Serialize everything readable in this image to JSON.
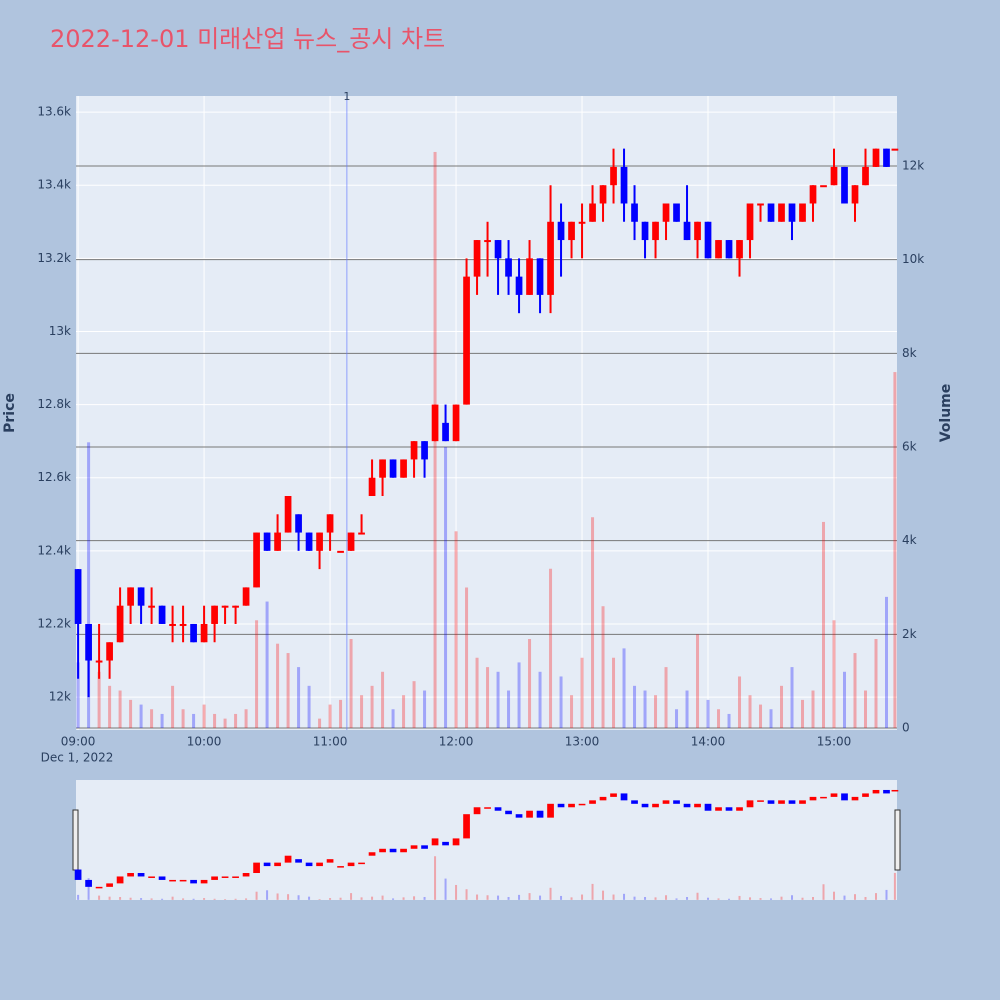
{
  "chart_data": {
    "type": "candlestick",
    "title": "2022-12-01 미래산업 뉴스_공시 차트",
    "y_label": "Price",
    "y2_label": "Volume",
    "x_date_label": "Dec 1, 2022",
    "increasing_color": "#ff0000",
    "decreasing_color": "#0000ff",
    "x": [
      "2022-12-01 09:00",
      "2022-12-01 09:05",
      "2022-12-01 09:10",
      "2022-12-01 09:15",
      "2022-12-01 09:20",
      "2022-12-01 09:25",
      "2022-12-01 09:30",
      "2022-12-01 09:35",
      "2022-12-01 09:40",
      "2022-12-01 09:45",
      "2022-12-01 09:50",
      "2022-12-01 09:55",
      "2022-12-01 10:00",
      "2022-12-01 10:05",
      "2022-12-01 10:10",
      "2022-12-01 10:15",
      "2022-12-01 10:20",
      "2022-12-01 10:25",
      "2022-12-01 10:30",
      "2022-12-01 10:35",
      "2022-12-01 10:40",
      "2022-12-01 10:45",
      "2022-12-01 10:50",
      "2022-12-01 10:55",
      "2022-12-01 11:00",
      "2022-12-01 11:05",
      "2022-12-01 11:10",
      "2022-12-01 11:15",
      "2022-12-01 11:20",
      "2022-12-01 11:25",
      "2022-12-01 11:30",
      "2022-12-01 11:35",
      "2022-12-01 11:40",
      "2022-12-01 11:45",
      "2022-12-01 11:50",
      "2022-12-01 11:55",
      "2022-12-01 12:00",
      "2022-12-01 12:05",
      "2022-12-01 12:10",
      "2022-12-01 12:15",
      "2022-12-01 12:20",
      "2022-12-01 12:25",
      "2022-12-01 12:30",
      "2022-12-01 12:35",
      "2022-12-01 12:40",
      "2022-12-01 12:45",
      "2022-12-01 12:50",
      "2022-12-01 12:55",
      "2022-12-01 13:00",
      "2022-12-01 13:05",
      "2022-12-01 13:10",
      "2022-12-01 13:15",
      "2022-12-01 13:20",
      "2022-12-01 13:25",
      "2022-12-01 13:30",
      "2022-12-01 13:35",
      "2022-12-01 13:40",
      "2022-12-01 13:45",
      "2022-12-01 13:50",
      "2022-12-01 13:55",
      "2022-12-01 14:00",
      "2022-12-01 14:05",
      "2022-12-01 14:10",
      "2022-12-01 14:15",
      "2022-12-01 14:20",
      "2022-12-01 14:25",
      "2022-12-01 14:30",
      "2022-12-01 14:35",
      "2022-12-01 14:40",
      "2022-12-01 14:45",
      "2022-12-01 14:50",
      "2022-12-01 14:55",
      "2022-12-01 15:00",
      "2022-12-01 15:05",
      "2022-12-01 15:10",
      "2022-12-01 15:15",
      "2022-12-01 15:20",
      "2022-12-01 15:25",
      "2022-12-01 15:29"
    ],
    "open": [
      12350,
      12200,
      12100,
      12100,
      12150,
      12250,
      12300,
      12250,
      12250,
      12200,
      12200,
      12200,
      12150,
      12200,
      12250,
      12250,
      12250,
      12300,
      12450,
      12400,
      12450,
      12500,
      12450,
      12400,
      12450,
      12400,
      12400,
      12450,
      12550,
      12600,
      12650,
      12600,
      12650,
      12700,
      12700,
      12750,
      12700,
      12800,
      13150,
      13250,
      13250,
      13200,
      13150,
      13100,
      13200,
      13100,
      13300,
      13250,
      13300,
      13300,
      13350,
      13400,
      13450,
      13350,
      13300,
      13250,
      13300,
      13350,
      13300,
      13250,
      13300,
      13200,
      13250,
      13200,
      13250,
      13350,
      13350,
      13300,
      13350,
      13300,
      13350,
      13400,
      13400,
      13450,
      13350,
      13400,
      13450,
      13500,
      13500
    ],
    "high": [
      12350,
      12200,
      12200,
      12150,
      12300,
      12300,
      12300,
      12300,
      12250,
      12250,
      12250,
      12200,
      12250,
      12250,
      12250,
      12250,
      12300,
      12450,
      12450,
      12500,
      12550,
      12500,
      12450,
      12450,
      12500,
      12400,
      12450,
      12500,
      12650,
      12650,
      12650,
      12650,
      12700,
      12700,
      12800,
      12800,
      12800,
      13200,
      13250,
      13300,
      13250,
      13250,
      13200,
      13250,
      13200,
      13400,
      13350,
      13300,
      13350,
      13400,
      13400,
      13500,
      13500,
      13400,
      13300,
      13300,
      13350,
      13350,
      13400,
      13300,
      13300,
      13250,
      13250,
      13250,
      13350,
      13350,
      13350,
      13350,
      13350,
      13350,
      13400,
      13400,
      13500,
      13450,
      13400,
      13500,
      13500,
      13500,
      13500
    ],
    "low": [
      12050,
      12000,
      12050,
      12050,
      12150,
      12200,
      12200,
      12200,
      12200,
      12150,
      12150,
      12150,
      12150,
      12150,
      12200,
      12200,
      12250,
      12300,
      12400,
      12400,
      12450,
      12400,
      12400,
      12350,
      12400,
      12400,
      12400,
      12450,
      12550,
      12550,
      12600,
      12600,
      12600,
      12600,
      12700,
      12700,
      12700,
      12800,
      13100,
      13150,
      13100,
      13100,
      13050,
      13100,
      13050,
      13050,
      13150,
      13200,
      13200,
      13300,
      13300,
      13350,
      13300,
      13250,
      13200,
      13200,
      13250,
      13300,
      13250,
      13200,
      13200,
      13200,
      13200,
      13150,
      13200,
      13300,
      13300,
      13300,
      13250,
      13300,
      13300,
      13400,
      13400,
      13350,
      13300,
      13400,
      13450,
      13450,
      13500
    ],
    "close": [
      12200,
      12100,
      12100,
      12150,
      12250,
      12300,
      12250,
      12250,
      12200,
      12200,
      12200,
      12150,
      12200,
      12250,
      12250,
      12250,
      12300,
      12450,
      12400,
      12450,
      12550,
      12450,
      12400,
      12450,
      12500,
      12400,
      12450,
      12450,
      12600,
      12650,
      12600,
      12650,
      12700,
      12650,
      12800,
      12700,
      12800,
      13150,
      13250,
      13250,
      13200,
      13150,
      13100,
      13200,
      13100,
      13300,
      13250,
      13300,
      13300,
      13350,
      13400,
      13450,
      13350,
      13300,
      13250,
      13300,
      13350,
      13300,
      13250,
      13300,
      13200,
      13250,
      13200,
      13250,
      13350,
      13350,
      13300,
      13350,
      13300,
      13350,
      13400,
      13400,
      13450,
      13350,
      13400,
      13450,
      13500,
      13450,
      13500
    ],
    "volume": [
      1400,
      6100,
      1200,
      900,
      800,
      600,
      500,
      400,
      300,
      900,
      400,
      300,
      500,
      300,
      200,
      300,
      400,
      2300,
      2700,
      1800,
      1600,
      1300,
      900,
      200,
      500,
      600,
      1900,
      700,
      900,
      1200,
      400,
      700,
      1000,
      800,
      12300,
      6000,
      4200,
      3000,
      1500,
      1300,
      1200,
      800,
      1400,
      1900,
      1200,
      3400,
      1100,
      700,
      1500,
      4500,
      2600,
      1500,
      1700,
      900,
      800,
      700,
      1300,
      400,
      800,
      2000,
      600,
      400,
      300,
      1100,
      700,
      500,
      400,
      900,
      1300,
      600,
      800,
      4400,
      2300,
      1200,
      1600,
      800,
      1900,
      2800,
      7600
    ],
    "xlim": [
      "2022-12-01 08:59",
      "2022-12-01 15:30"
    ],
    "xticks": [
      {
        "value": "2022-12-01 09:00",
        "label": "09:00"
      },
      {
        "value": "2022-12-01 10:00",
        "label": "10:00"
      },
      {
        "value": "2022-12-01 11:00",
        "label": "11:00"
      },
      {
        "value": "2022-12-01 12:00",
        "label": "12:00"
      },
      {
        "value": "2022-12-01 13:00",
        "label": "13:00"
      },
      {
        "value": "2022-12-01 14:00",
        "label": "14:00"
      },
      {
        "value": "2022-12-01 15:00",
        "label": "15:00"
      }
    ],
    "ylim": [
      11910,
      13644
    ],
    "yticks": [
      {
        "value": 12000,
        "label": "12k"
      },
      {
        "value": 12200,
        "label": "12.2k"
      },
      {
        "value": 12400,
        "label": "12.4k"
      },
      {
        "value": 12600,
        "label": "12.6k"
      },
      {
        "value": 12800,
        "label": "12.8k"
      },
      {
        "value": 13000,
        "label": "13k"
      },
      {
        "value": 13200,
        "label": "13.2k"
      },
      {
        "value": 13400,
        "label": "13.4k"
      },
      {
        "value": 13600,
        "label": "13.6k"
      }
    ],
    "y2lim": [
      -43,
      13495
    ],
    "y2ticks": [
      0,
      {
        "value": 2000,
        "label": "2k"
      },
      {
        "value": 4000,
        "label": "4k"
      },
      {
        "value": 6000,
        "label": "6k"
      },
      {
        "value": 8000,
        "label": "8k"
      },
      {
        "value": 10000,
        "label": "10k"
      },
      {
        "value": 12000,
        "label": "12k"
      }
    ],
    "annotation": {
      "x": "2022-12-01 11:08",
      "text": "1"
    }
  }
}
